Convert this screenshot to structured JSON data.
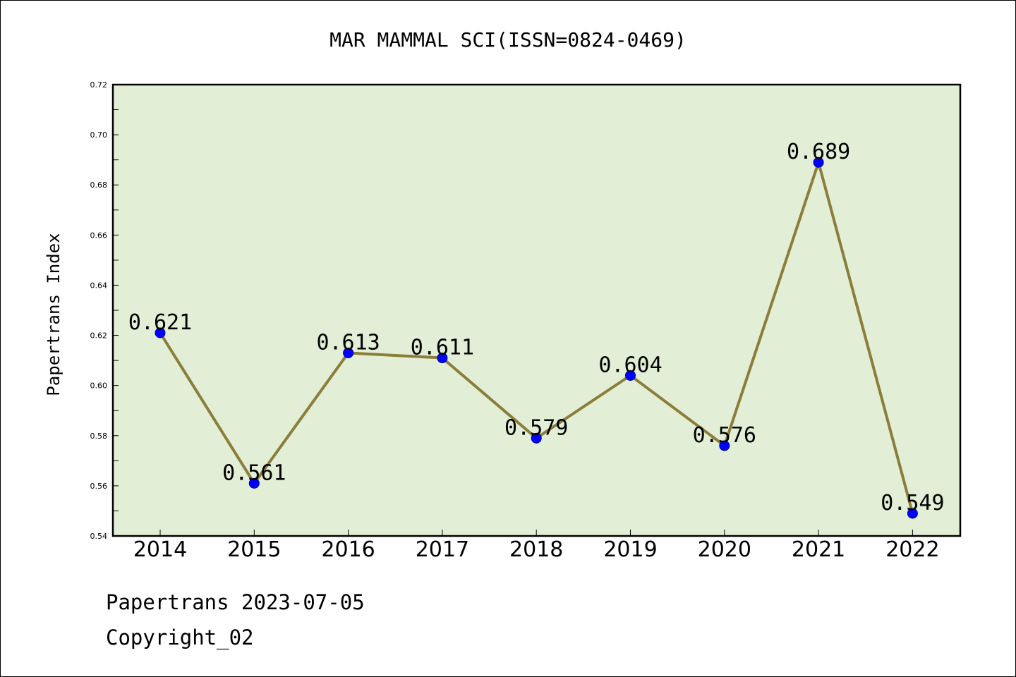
{
  "chart_data": {
    "type": "line",
    "title": "MAR MAMMAL SCI(ISSN=0824-0469)",
    "xlabel": "",
    "ylabel": "Papertrans Index",
    "categories": [
      "2014",
      "2015",
      "2016",
      "2017",
      "2018",
      "2019",
      "2020",
      "2021",
      "2022"
    ],
    "series": [
      {
        "values": [
          0.621,
          0.561,
          0.613,
          0.611,
          0.579,
          0.604,
          0.576,
          0.689,
          0.549
        ],
        "labels": [
          "0.621",
          "0.561",
          "0.613",
          "0.611",
          "0.579",
          "0.604",
          "0.576",
          "0.689",
          "0.549"
        ]
      }
    ],
    "ylim": [
      0.54,
      0.72
    ],
    "yticks": [
      "0.54",
      "0.56",
      "0.58",
      "0.60",
      "0.62",
      "0.64",
      "0.66",
      "0.68",
      "0.70",
      "0.72"
    ],
    "grid": false,
    "legend": "none",
    "colors": {
      "line": "#8b7d3a",
      "marker": "#0000ff",
      "marker_edge": "#00008b",
      "plot_background": "#e2efd6",
      "axes": "#000000"
    }
  },
  "footer": {
    "line1": "Papertrans 2023-07-05",
    "line2": "Copyright_02"
  }
}
